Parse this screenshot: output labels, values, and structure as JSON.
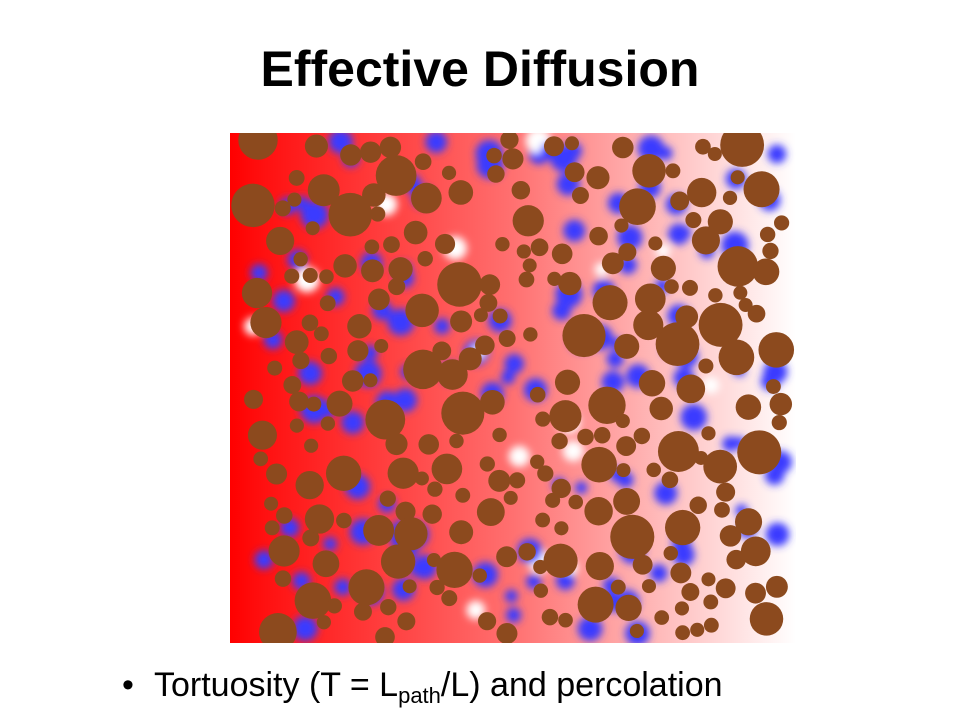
{
  "header": {
    "title": "Effective Diffusion"
  },
  "bullet": {
    "before": "Tortuosity (T = L",
    "subscript": "path",
    "after": "/L) and percolation"
  }
}
